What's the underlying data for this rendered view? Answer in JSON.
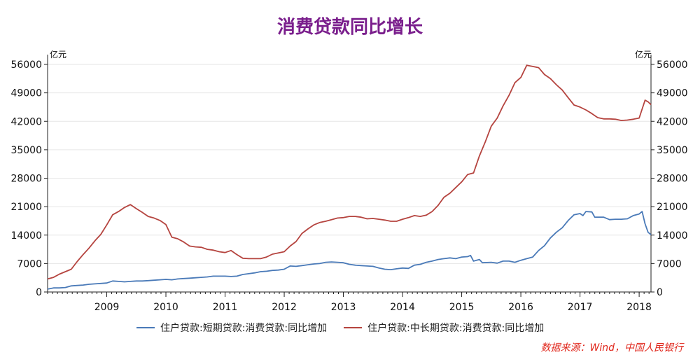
{
  "chart_data": {
    "type": "line",
    "title": "消费贷款同比增长",
    "y_unit_left": "亿元",
    "y_unit_right": "亿元",
    "ylim": [
      0,
      56000
    ],
    "yticks": [
      0,
      7000,
      14000,
      21000,
      28000,
      35000,
      42000,
      49000,
      56000
    ],
    "xlim": [
      2008.0,
      2018.2
    ],
    "xticks": [
      "2009",
      "2010",
      "2011",
      "2012",
      "2013",
      "2014",
      "2015",
      "2016",
      "2017",
      "2018"
    ],
    "series": [
      {
        "name": "住户贷款:短期贷款:消费贷款:同比增加",
        "color": "#4a7ab8",
        "points": [
          [
            2008.0,
            700
          ],
          [
            2008.1,
            1000
          ],
          [
            2008.2,
            1000
          ],
          [
            2008.3,
            1100
          ],
          [
            2008.4,
            1500
          ],
          [
            2008.5,
            1600
          ],
          [
            2008.6,
            1700
          ],
          [
            2008.7,
            1900
          ],
          [
            2008.8,
            2000
          ],
          [
            2008.9,
            2100
          ],
          [
            2009.0,
            2200
          ],
          [
            2009.1,
            2700
          ],
          [
            2009.2,
            2600
          ],
          [
            2009.3,
            2500
          ],
          [
            2009.4,
            2600
          ],
          [
            2009.5,
            2700
          ],
          [
            2009.6,
            2700
          ],
          [
            2009.7,
            2800
          ],
          [
            2009.8,
            2900
          ],
          [
            2009.9,
            3000
          ],
          [
            2010.0,
            3100
          ],
          [
            2010.1,
            3000
          ],
          [
            2010.2,
            3200
          ],
          [
            2010.3,
            3300
          ],
          [
            2010.4,
            3400
          ],
          [
            2010.5,
            3500
          ],
          [
            2010.6,
            3600
          ],
          [
            2010.7,
            3700
          ],
          [
            2010.8,
            3900
          ],
          [
            2010.9,
            3900
          ],
          [
            2011.0,
            3900
          ],
          [
            2011.1,
            3800
          ],
          [
            2011.2,
            3900
          ],
          [
            2011.3,
            4300
          ],
          [
            2011.4,
            4500
          ],
          [
            2011.5,
            4700
          ],
          [
            2011.6,
            5000
          ],
          [
            2011.7,
            5100
          ],
          [
            2011.8,
            5300
          ],
          [
            2011.9,
            5400
          ],
          [
            2012.0,
            5600
          ],
          [
            2012.1,
            6400
          ],
          [
            2012.2,
            6300
          ],
          [
            2012.3,
            6500
          ],
          [
            2012.4,
            6700
          ],
          [
            2012.5,
            6900
          ],
          [
            2012.6,
            7000
          ],
          [
            2012.7,
            7300
          ],
          [
            2012.8,
            7400
          ],
          [
            2012.9,
            7300
          ],
          [
            2013.0,
            7200
          ],
          [
            2013.1,
            6800
          ],
          [
            2013.2,
            6600
          ],
          [
            2013.3,
            6500
          ],
          [
            2013.4,
            6400
          ],
          [
            2013.5,
            6300
          ],
          [
            2013.6,
            5900
          ],
          [
            2013.7,
            5600
          ],
          [
            2013.8,
            5500
          ],
          [
            2013.9,
            5700
          ],
          [
            2014.0,
            5900
          ],
          [
            2014.1,
            5800
          ],
          [
            2014.2,
            6600
          ],
          [
            2014.3,
            6800
          ],
          [
            2014.4,
            7300
          ],
          [
            2014.5,
            7600
          ],
          [
            2014.6,
            8000
          ],
          [
            2014.7,
            8200
          ],
          [
            2014.8,
            8400
          ],
          [
            2014.9,
            8200
          ],
          [
            2015.0,
            8600
          ],
          [
            2015.1,
            8700
          ],
          [
            2015.15,
            9000
          ],
          [
            2015.2,
            7600
          ],
          [
            2015.3,
            8000
          ],
          [
            2015.35,
            7200
          ],
          [
            2015.5,
            7300
          ],
          [
            2015.6,
            7100
          ],
          [
            2015.7,
            7600
          ],
          [
            2015.8,
            7600
          ],
          [
            2015.9,
            7300
          ],
          [
            2016.0,
            7800
          ],
          [
            2016.1,
            8200
          ],
          [
            2016.2,
            8600
          ],
          [
            2016.3,
            10200
          ],
          [
            2016.4,
            11400
          ],
          [
            2016.5,
            13300
          ],
          [
            2016.6,
            14700
          ],
          [
            2016.7,
            15800
          ],
          [
            2016.8,
            17600
          ],
          [
            2016.9,
            19000
          ],
          [
            2017.0,
            19300
          ],
          [
            2017.05,
            18800
          ],
          [
            2017.1,
            19800
          ],
          [
            2017.2,
            19700
          ],
          [
            2017.25,
            18400
          ],
          [
            2017.4,
            18400
          ],
          [
            2017.5,
            17800
          ],
          [
            2017.6,
            17900
          ],
          [
            2017.7,
            17900
          ],
          [
            2017.8,
            18000
          ],
          [
            2017.9,
            18800
          ],
          [
            2018.0,
            19200
          ],
          [
            2018.05,
            19800
          ],
          [
            2018.1,
            16800
          ],
          [
            2018.15,
            14700
          ],
          [
            2018.2,
            14100
          ]
        ]
      },
      {
        "name": "住户贷款:中长期贷款:消费贷款:同比增加",
        "color": "#b5443f",
        "points": [
          [
            2008.0,
            3200
          ],
          [
            2008.1,
            3600
          ],
          [
            2008.2,
            4400
          ],
          [
            2008.3,
            5000
          ],
          [
            2008.4,
            5600
          ],
          [
            2008.5,
            7500
          ],
          [
            2008.6,
            9200
          ],
          [
            2008.7,
            10800
          ],
          [
            2008.8,
            12600
          ],
          [
            2008.9,
            14200
          ],
          [
            2009.0,
            16500
          ],
          [
            2009.1,
            19000
          ],
          [
            2009.2,
            19800
          ],
          [
            2009.3,
            20800
          ],
          [
            2009.4,
            21500
          ],
          [
            2009.5,
            20500
          ],
          [
            2009.6,
            19600
          ],
          [
            2009.7,
            18600
          ],
          [
            2009.8,
            18200
          ],
          [
            2009.9,
            17600
          ],
          [
            2010.0,
            16600
          ],
          [
            2010.1,
            13500
          ],
          [
            2010.2,
            13100
          ],
          [
            2010.3,
            12300
          ],
          [
            2010.4,
            11300
          ],
          [
            2010.5,
            11100
          ],
          [
            2010.6,
            11000
          ],
          [
            2010.7,
            10500
          ],
          [
            2010.8,
            10300
          ],
          [
            2010.9,
            9900
          ],
          [
            2011.0,
            9700
          ],
          [
            2011.1,
            10200
          ],
          [
            2011.2,
            9200
          ],
          [
            2011.3,
            8300
          ],
          [
            2011.4,
            8200
          ],
          [
            2011.5,
            8200
          ],
          [
            2011.6,
            8200
          ],
          [
            2011.7,
            8600
          ],
          [
            2011.8,
            9300
          ],
          [
            2011.9,
            9600
          ],
          [
            2012.0,
            9900
          ],
          [
            2012.1,
            11300
          ],
          [
            2012.2,
            12400
          ],
          [
            2012.3,
            14400
          ],
          [
            2012.4,
            15500
          ],
          [
            2012.5,
            16500
          ],
          [
            2012.6,
            17100
          ],
          [
            2012.7,
            17400
          ],
          [
            2012.8,
            17800
          ],
          [
            2012.9,
            18200
          ],
          [
            2013.0,
            18300
          ],
          [
            2013.1,
            18600
          ],
          [
            2013.2,
            18600
          ],
          [
            2013.3,
            18400
          ],
          [
            2013.4,
            18000
          ],
          [
            2013.5,
            18100
          ],
          [
            2013.6,
            17900
          ],
          [
            2013.7,
            17700
          ],
          [
            2013.8,
            17400
          ],
          [
            2013.9,
            17400
          ],
          [
            2014.0,
            17900
          ],
          [
            2014.1,
            18300
          ],
          [
            2014.2,
            18800
          ],
          [
            2014.3,
            18600
          ],
          [
            2014.4,
            18900
          ],
          [
            2014.5,
            19800
          ],
          [
            2014.6,
            21300
          ],
          [
            2014.7,
            23300
          ],
          [
            2014.8,
            24300
          ],
          [
            2014.9,
            25700
          ],
          [
            2015.0,
            27100
          ],
          [
            2015.1,
            28900
          ],
          [
            2015.2,
            29300
          ],
          [
            2015.3,
            33500
          ],
          [
            2015.4,
            37000
          ],
          [
            2015.5,
            40800
          ],
          [
            2015.6,
            42800
          ],
          [
            2015.7,
            45800
          ],
          [
            2015.8,
            48400
          ],
          [
            2015.9,
            51500
          ],
          [
            2016.0,
            52800
          ],
          [
            2016.1,
            55800
          ],
          [
            2016.2,
            55500
          ],
          [
            2016.3,
            55200
          ],
          [
            2016.4,
            53500
          ],
          [
            2016.5,
            52500
          ],
          [
            2016.6,
            51000
          ],
          [
            2016.7,
            49700
          ],
          [
            2016.8,
            47800
          ],
          [
            2016.9,
            46000
          ],
          [
            2017.0,
            45500
          ],
          [
            2017.1,
            44800
          ],
          [
            2017.2,
            43900
          ],
          [
            2017.3,
            42900
          ],
          [
            2017.4,
            42600
          ],
          [
            2017.5,
            42600
          ],
          [
            2017.6,
            42500
          ],
          [
            2017.7,
            42200
          ],
          [
            2017.8,
            42300
          ],
          [
            2017.9,
            42500
          ],
          [
            2018.0,
            42800
          ],
          [
            2018.1,
            47200
          ],
          [
            2018.15,
            46800
          ],
          [
            2018.2,
            46100
          ]
        ]
      }
    ],
    "source_text": "数据来源：Wind，中国人民银行",
    "source_color": "#e0261b"
  }
}
